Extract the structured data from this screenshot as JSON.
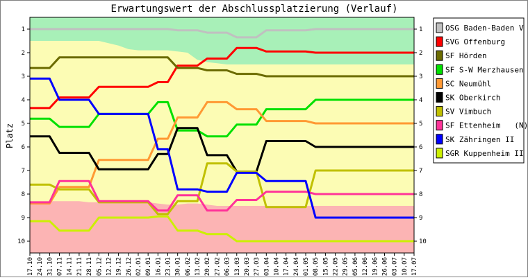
{
  "chart_data": {
    "type": "line",
    "title": "Erwartungswert der Abschlussplatzierung (Verlauf)",
    "ylabel": "Platz",
    "xlabel": "",
    "ylim": [
      1,
      10
    ],
    "y_inverted": true,
    "yticks": [
      1,
      2,
      3,
      4,
      5,
      6,
      7,
      8,
      9,
      10
    ],
    "x": [
      "17.10",
      "24.10",
      "31.10",
      "07.11",
      "14.11",
      "21.11",
      "28.11",
      "05.12",
      "12.12",
      "19.12",
      "26.12",
      "02.01",
      "09.01",
      "16.01",
      "23.01",
      "30.01",
      "06.02",
      "13.02",
      "20.02",
      "27.02",
      "06.03",
      "13.03",
      "20.03",
      "27.03",
      "03.04",
      "10.04",
      "17.04",
      "24.04",
      "01.05",
      "08.05",
      "15.05",
      "22.05",
      "29.05",
      "05.06",
      "12.06",
      "19.06",
      "26.06",
      "03.07",
      "10.07",
      "17.07"
    ],
    "zones": {
      "green": {
        "color": "#a8f0b8",
        "boundary": [
          1.5,
          1.5,
          1.5,
          1.5,
          1.5,
          1.5,
          1.5,
          1.5,
          1.6,
          1.7,
          1.85,
          1.9,
          1.9,
          1.9,
          1.9,
          1.95,
          2.0,
          2.3,
          2.4,
          2.45,
          2.5,
          2.5,
          2.5,
          2.5,
          2.5,
          2.5,
          2.5,
          2.5,
          2.5,
          2.5,
          2.5,
          2.5,
          2.5,
          2.5,
          2.5,
          2.5,
          2.5,
          2.5,
          2.5,
          2.5
        ]
      },
      "yellow": {
        "color": "#fcfcb4"
      },
      "red": {
        "color": "#fcb4b4",
        "boundary": [
          8.45,
          8.4,
          8.3,
          8.3,
          8.3,
          8.3,
          8.35,
          8.35,
          8.35,
          8.35,
          8.35,
          8.35,
          8.35,
          8.4,
          8.45,
          8.45,
          8.4,
          8.4,
          8.45,
          8.5,
          8.5,
          8.5,
          8.5,
          8.5,
          8.5,
          8.5,
          8.5,
          8.5,
          8.5,
          8.5,
          8.5,
          8.5,
          8.5,
          8.5,
          8.5,
          8.5,
          8.5,
          8.5,
          8.5,
          8.5
        ]
      }
    },
    "legend_position": "right",
    "series": [
      {
        "name": "OSG Baden-Baden V",
        "color": "#c0c0c0",
        "values": [
          1.0,
          1.0,
          1.0,
          1.0,
          1.0,
          1.0,
          1.0,
          1.0,
          1.0,
          1.0,
          1.0,
          1.0,
          1.0,
          1.0,
          1.0,
          1.05,
          1.05,
          1.05,
          1.15,
          1.15,
          1.15,
          1.35,
          1.35,
          1.35,
          1.05,
          1.05,
          1.05,
          1.05,
          1.05,
          1.0,
          1.0,
          1.0,
          1.0,
          1.0,
          1.0,
          1.0,
          1.0,
          1.0,
          1.0,
          1.0
        ]
      },
      {
        "name": "SVG Offenburg",
        "color": "#ff0000",
        "values": [
          4.35,
          4.35,
          4.35,
          3.9,
          3.9,
          3.9,
          3.9,
          3.45,
          3.45,
          3.45,
          3.45,
          3.45,
          3.45,
          3.25,
          3.25,
          2.55,
          2.55,
          2.55,
          2.25,
          2.25,
          2.25,
          1.8,
          1.8,
          1.8,
          1.95,
          1.95,
          1.95,
          1.95,
          1.95,
          2.0,
          2.0,
          2.0,
          2.0,
          2.0,
          2.0,
          2.0,
          2.0,
          2.0,
          2.0,
          2.0
        ]
      },
      {
        "name": "SF Hörden",
        "color": "#6b6b00",
        "values": [
          2.65,
          2.65,
          2.65,
          2.2,
          2.2,
          2.2,
          2.2,
          2.2,
          2.2,
          2.2,
          2.2,
          2.2,
          2.2,
          2.2,
          2.2,
          2.65,
          2.65,
          2.65,
          2.75,
          2.75,
          2.75,
          2.9,
          2.9,
          2.9,
          3.0,
          3.0,
          3.0,
          3.0,
          3.0,
          3.0,
          3.0,
          3.0,
          3.0,
          3.0,
          3.0,
          3.0,
          3.0,
          3.0,
          3.0,
          3.0
        ]
      },
      {
        "name": "SF S-W Merzhausen",
        "color": "#00e000",
        "values": [
          4.8,
          4.8,
          4.8,
          5.15,
          5.15,
          5.15,
          5.15,
          4.6,
          4.6,
          4.6,
          4.6,
          4.6,
          4.6,
          4.1,
          4.1,
          5.3,
          5.3,
          5.3,
          5.55,
          5.55,
          5.55,
          5.05,
          5.05,
          5.05,
          4.4,
          4.4,
          4.4,
          4.4,
          4.4,
          4.0,
          4.0,
          4.0,
          4.0,
          4.0,
          4.0,
          4.0,
          4.0,
          4.0,
          4.0,
          4.0
        ]
      },
      {
        "name": "SC Neumühl",
        "color": "#ff9933",
        "values": [
          8.4,
          8.4,
          8.4,
          7.7,
          7.7,
          7.7,
          7.7,
          6.55,
          6.55,
          6.55,
          6.55,
          6.55,
          6.55,
          5.65,
          5.65,
          4.75,
          4.75,
          4.75,
          4.1,
          4.1,
          4.1,
          4.4,
          4.4,
          4.4,
          4.9,
          4.9,
          4.9,
          4.9,
          4.9,
          5.0,
          5.0,
          5.0,
          5.0,
          5.0,
          5.0,
          5.0,
          5.0,
          5.0,
          5.0,
          5.0
        ]
      },
      {
        "name": "SK Oberkirch",
        "color": "#000000",
        "values": [
          5.55,
          5.55,
          5.55,
          6.25,
          6.25,
          6.25,
          6.25,
          6.95,
          6.95,
          6.95,
          6.95,
          6.95,
          6.95,
          6.3,
          6.3,
          5.2,
          5.2,
          5.2,
          6.35,
          6.35,
          6.35,
          7.05,
          7.05,
          7.05,
          5.75,
          5.75,
          5.75,
          5.75,
          5.75,
          6.0,
          6.0,
          6.0,
          6.0,
          6.0,
          6.0,
          6.0,
          6.0,
          6.0,
          6.0,
          6.0
        ]
      },
      {
        "name": "SV Vimbuch",
        "color": "#c0c000",
        "values": [
          7.6,
          7.6,
          7.6,
          7.8,
          7.8,
          7.8,
          7.8,
          8.35,
          8.35,
          8.35,
          8.35,
          8.35,
          8.35,
          8.85,
          8.85,
          8.3,
          8.3,
          8.3,
          6.7,
          6.7,
          6.7,
          7.05,
          7.05,
          7.05,
          8.55,
          8.55,
          8.55,
          8.55,
          8.55,
          7.0,
          7.0,
          7.0,
          7.0,
          7.0,
          7.0,
          7.0,
          7.0,
          7.0,
          7.0,
          7.0
        ]
      },
      {
        "name": "SF Ettenheim   (N)",
        "color": "#ff3399",
        "values": [
          8.35,
          8.35,
          8.35,
          7.45,
          7.45,
          7.45,
          7.45,
          8.3,
          8.3,
          8.3,
          8.3,
          8.3,
          8.3,
          8.7,
          8.7,
          8.05,
          8.05,
          8.05,
          8.7,
          8.7,
          8.7,
          8.25,
          8.25,
          8.25,
          7.9,
          7.9,
          7.9,
          7.9,
          7.9,
          8.0,
          8.0,
          8.0,
          8.0,
          8.0,
          8.0,
          8.0,
          8.0,
          8.0,
          8.0,
          8.0
        ]
      },
      {
        "name": "SK Zähringen II",
        "color": "#0000ff",
        "values": [
          3.1,
          3.1,
          3.1,
          4.0,
          4.0,
          4.0,
          4.0,
          4.6,
          4.6,
          4.6,
          4.6,
          4.6,
          4.6,
          6.1,
          6.1,
          7.8,
          7.8,
          7.8,
          7.9,
          7.9,
          7.9,
          7.1,
          7.1,
          7.1,
          7.45,
          7.45,
          7.45,
          7.45,
          7.45,
          9.0,
          9.0,
          9.0,
          9.0,
          9.0,
          9.0,
          9.0,
          9.0,
          9.0,
          9.0,
          9.0
        ]
      },
      {
        "name": "SGR Kuppenheim II",
        "color": "#ccf000",
        "values": [
          9.15,
          9.15,
          9.15,
          9.55,
          9.55,
          9.55,
          9.55,
          9.0,
          9.0,
          9.0,
          9.0,
          9.0,
          9.0,
          8.95,
          8.95,
          9.55,
          9.55,
          9.55,
          9.7,
          9.7,
          9.7,
          10.0,
          10.0,
          10.0,
          10.0,
          10.0,
          10.0,
          10.0,
          10.0,
          10.0,
          10.0,
          10.0,
          10.0,
          10.0,
          10.0,
          10.0,
          10.0,
          10.0,
          10.0,
          10.0
        ]
      }
    ]
  }
}
